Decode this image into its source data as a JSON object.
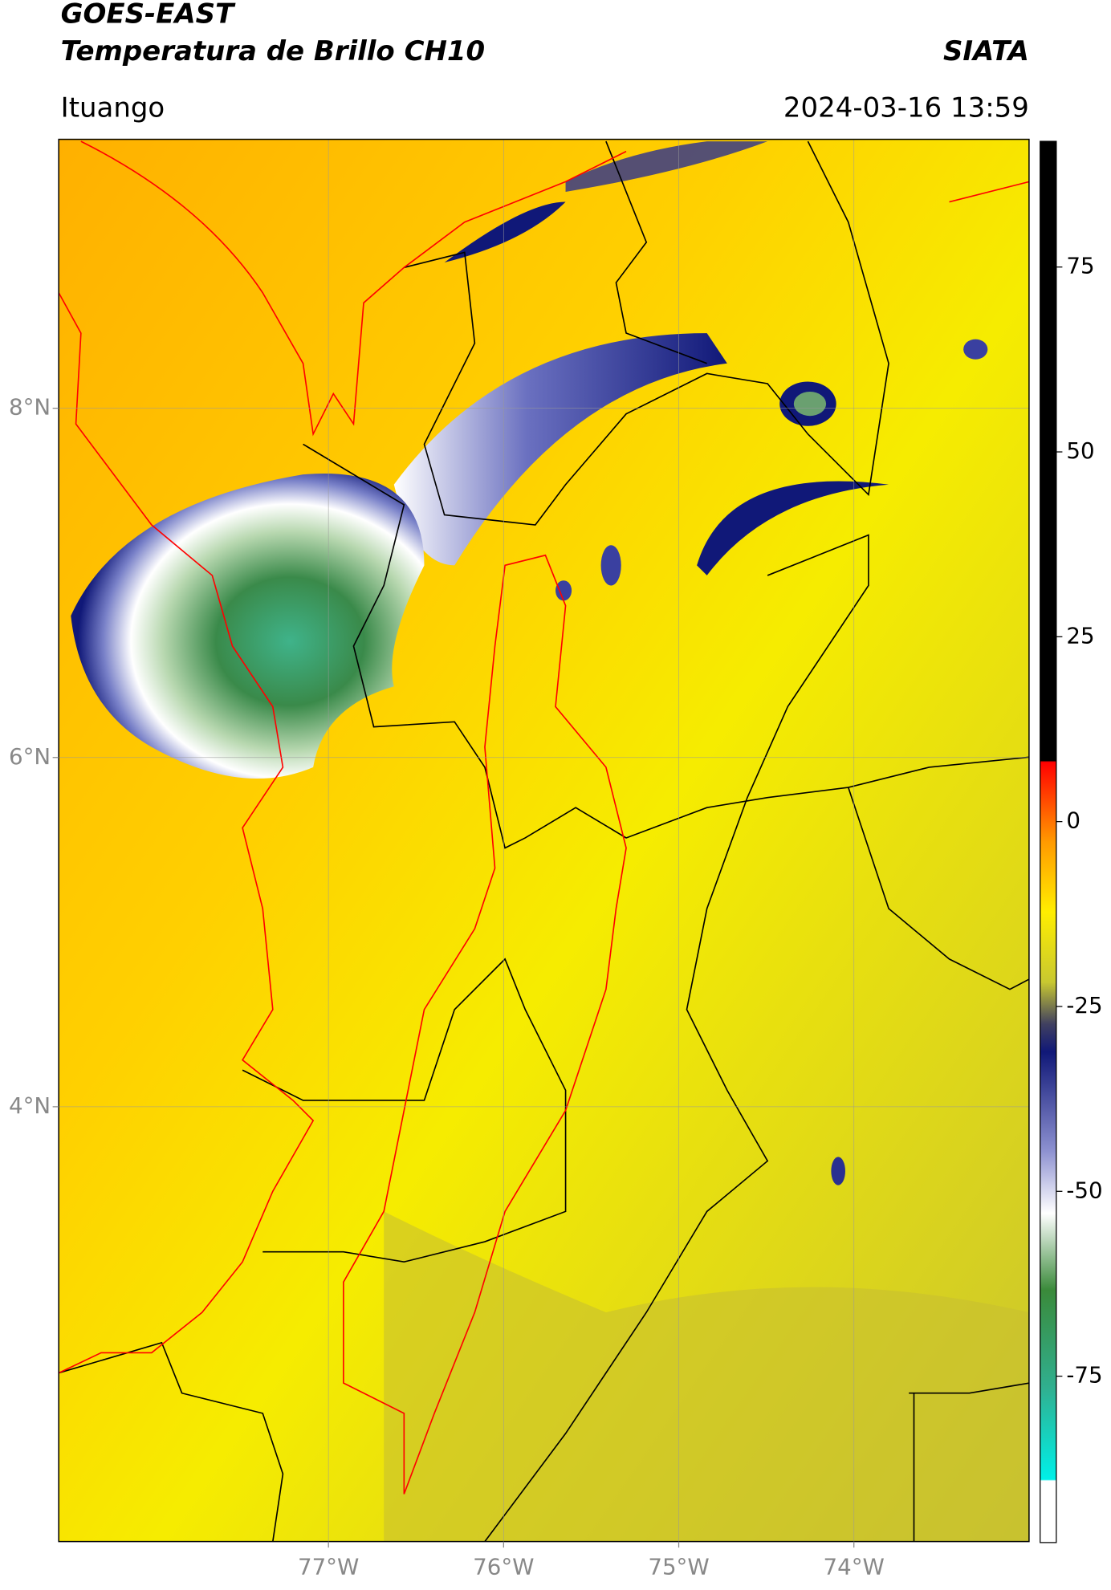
{
  "header": {
    "title": "GOES-EAST",
    "subtitle": "Temperatura de Brillo CH10",
    "source": "SIATA",
    "location": "Ituango",
    "datetime": "2024-03-16 13:59"
  },
  "map": {
    "xlim": [
      -78.54,
      -73.0
    ],
    "ylim": [
      1.51,
      9.54
    ],
    "xticks": [
      {
        "value": -77,
        "label": "77°W"
      },
      {
        "value": -76,
        "label": "76°W"
      },
      {
        "value": -75,
        "label": "75°W"
      },
      {
        "value": -74,
        "label": "74°W"
      }
    ],
    "yticks": [
      {
        "value": 8,
        "label": "8°N"
      },
      {
        "value": 6,
        "label": "6°N"
      },
      {
        "value": 4,
        "label": "4°N"
      }
    ],
    "grid": true
  },
  "colorbar": {
    "lim": [
      -97.5,
      92
    ],
    "ticks": [
      75,
      50,
      25,
      0,
      -25,
      -50,
      -75
    ]
  }
}
